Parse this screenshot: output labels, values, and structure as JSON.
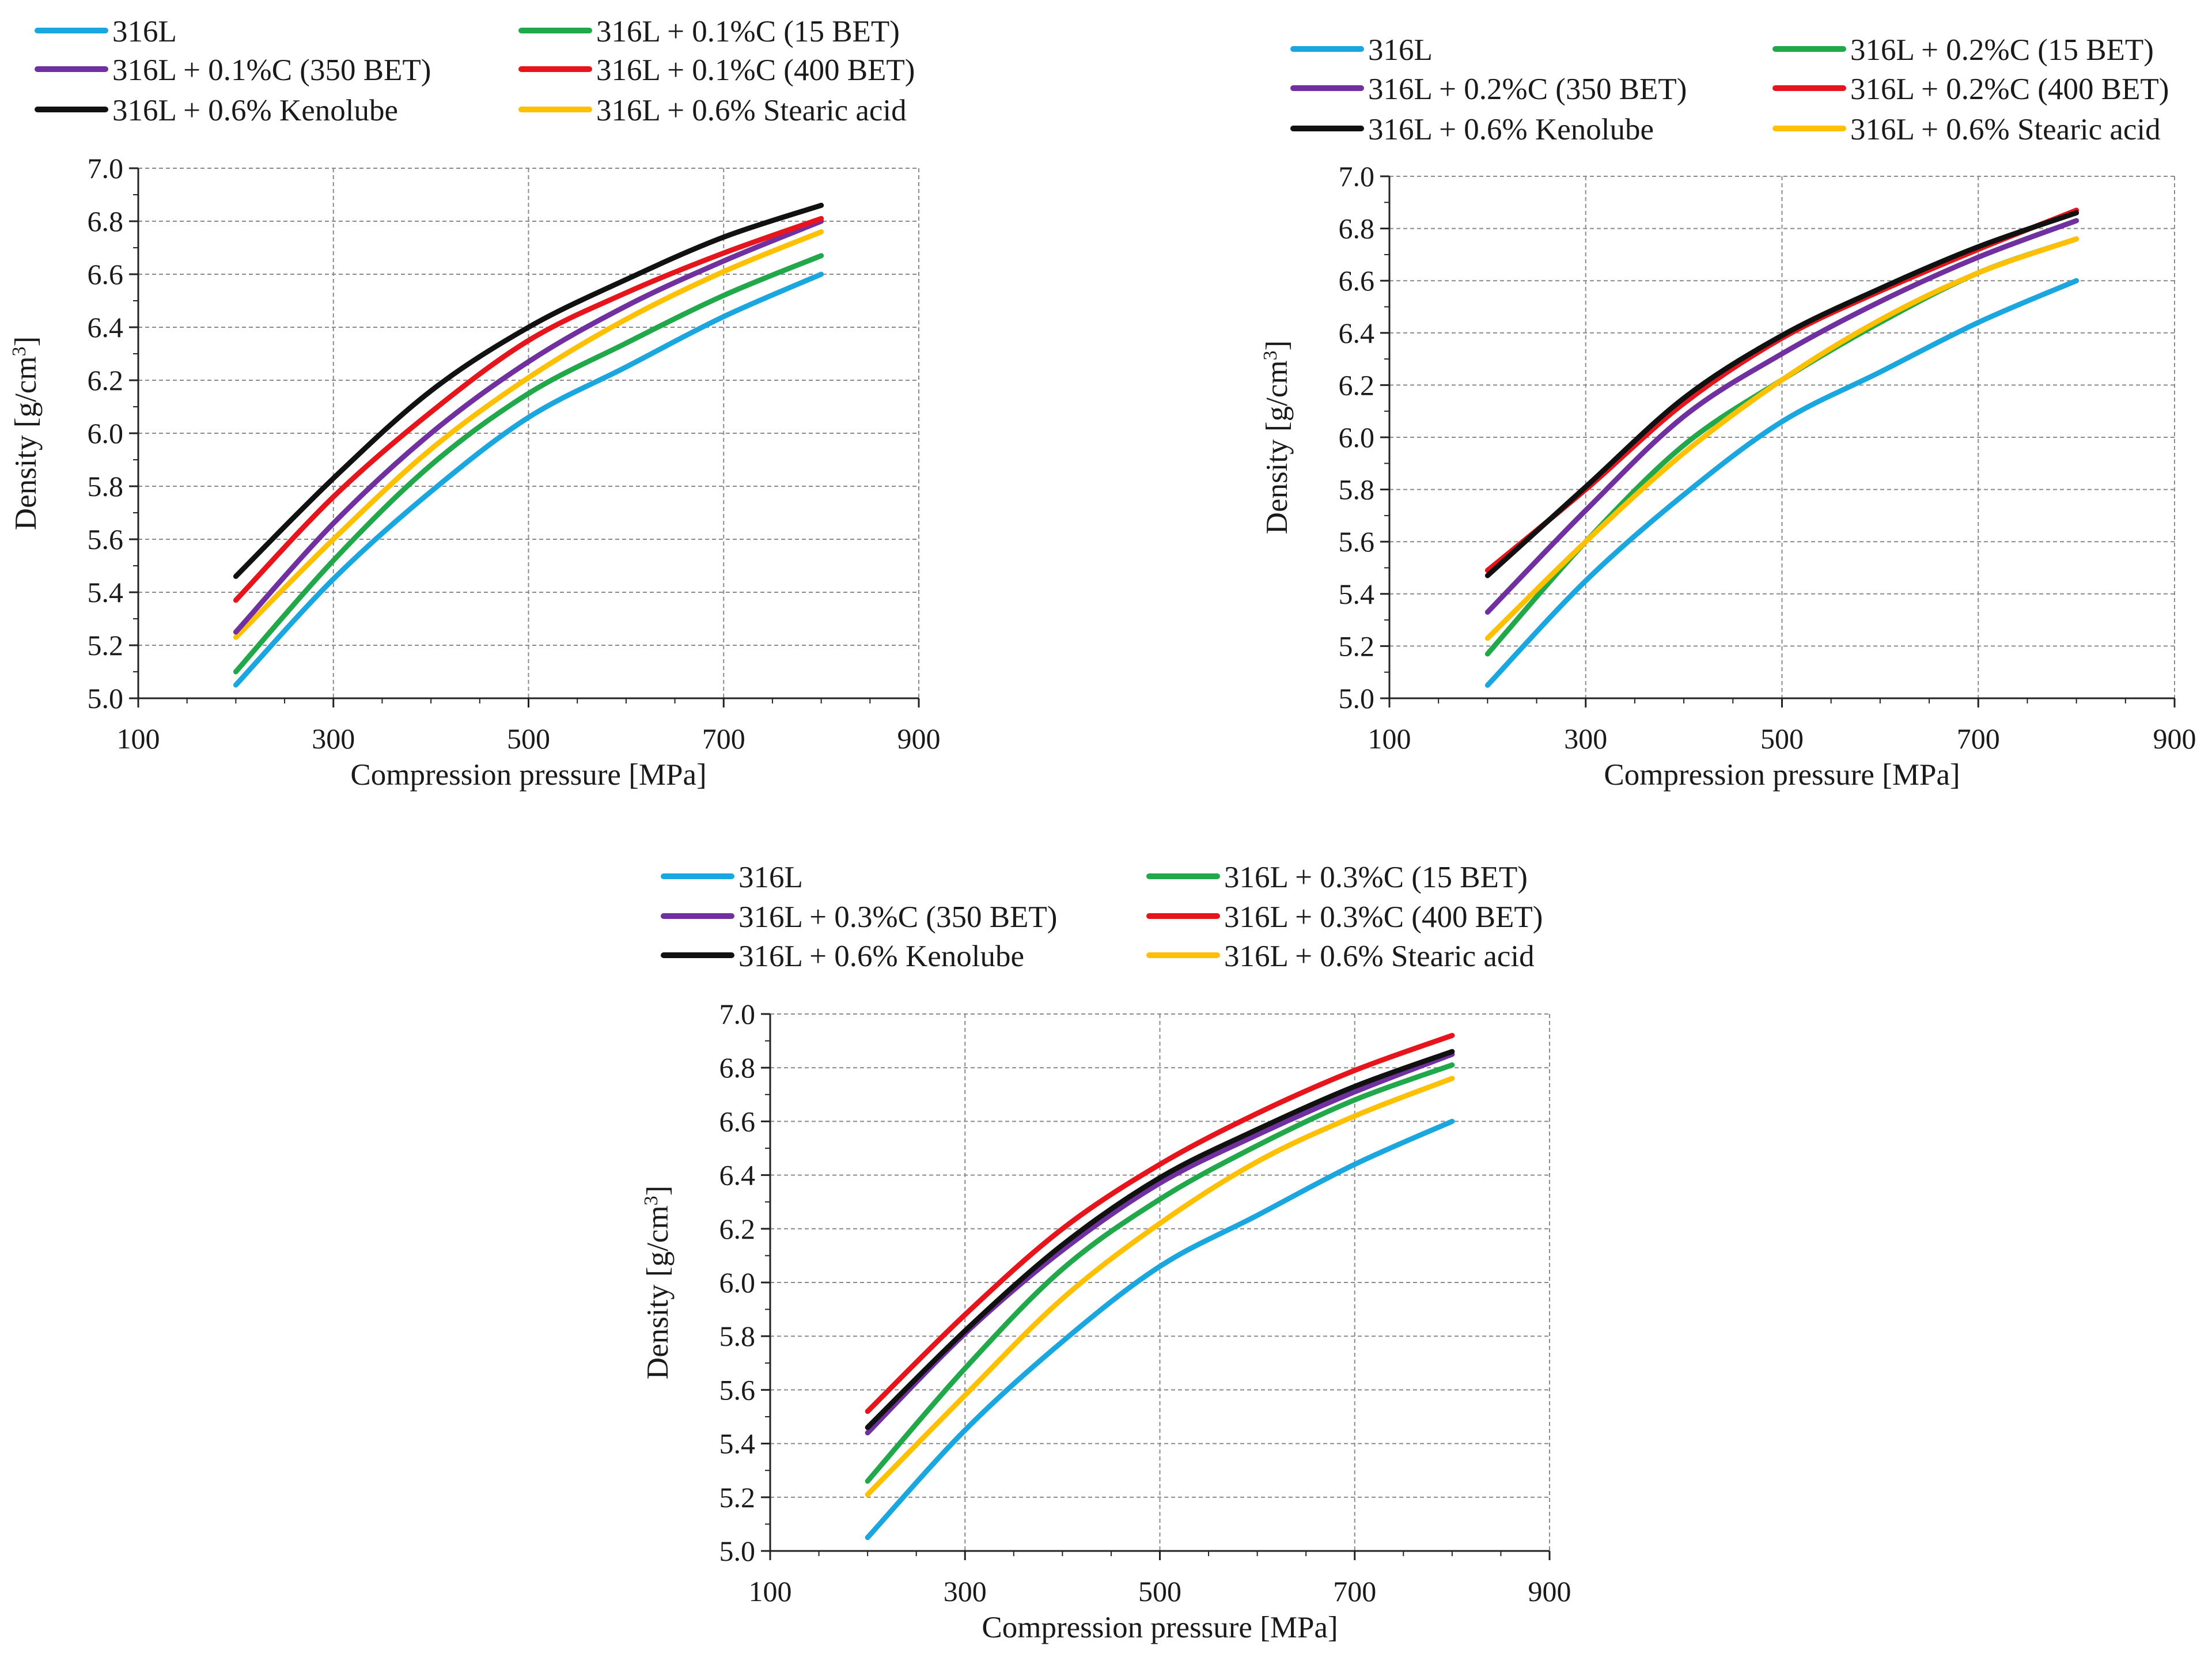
{
  "chart_data": [
    {
      "type": "line",
      "title": "",
      "xlabel": "Compression pressure [MPa]",
      "ylabel_main": "Density [g/cm",
      "ylabel_sup": "3",
      "ylabel_end": "]",
      "xlim": [
        100,
        900
      ],
      "ylim": [
        5.0,
        7.0
      ],
      "xticks": [
        100,
        300,
        500,
        700,
        900
      ],
      "xtick_labels": [
        "100",
        "300",
        "500",
        "700",
        "900"
      ],
      "yticks": [
        5.0,
        5.2,
        5.4,
        5.6,
        5.8,
        6.0,
        6.2,
        6.4,
        6.6,
        6.8,
        7.0
      ],
      "ytick_labels": [
        "5.0",
        "5.2",
        "5.4",
        "5.6",
        "5.8",
        "6.0",
        "6.2",
        "6.4",
        "6.6",
        "6.8",
        "7.0"
      ],
      "grid": true,
      "x": [
        200,
        300,
        400,
        500,
        600,
        700,
        800
      ],
      "series": [
        {
          "name": "316L",
          "color": "#1aa7e0",
          "values": [
            5.05,
            5.45,
            5.78,
            6.06,
            6.25,
            6.44,
            6.6
          ]
        },
        {
          "name": "316L + 0.1%C (15 BET)",
          "color": "#21a84a",
          "values": [
            5.1,
            5.52,
            5.88,
            6.15,
            6.34,
            6.52,
            6.67
          ]
        },
        {
          "name": "316L + 0.1%C (350 BET)",
          "color": "#7030a0",
          "values": [
            5.25,
            5.66,
            6.0,
            6.27,
            6.48,
            6.65,
            6.8
          ]
        },
        {
          "name": "316L + 0.1%C (400 BET)",
          "color": "#e8141b",
          "values": [
            5.37,
            5.76,
            6.08,
            6.35,
            6.53,
            6.68,
            6.81
          ]
        },
        {
          "name": "316L + 0.6% Kenolube",
          "color": "#111111",
          "values": [
            5.46,
            5.83,
            6.16,
            6.4,
            6.58,
            6.74,
            6.86
          ]
        },
        {
          "name": "316L + 0.6% Stearic acid",
          "color": "#ffc000",
          "values": [
            5.23,
            5.6,
            5.94,
            6.21,
            6.43,
            6.61,
            6.76
          ]
        }
      ]
    },
    {
      "type": "line",
      "title": "",
      "xlabel": "Compression pressure [MPa]",
      "ylabel_main": "Density [g/cm",
      "ylabel_sup": "3",
      "ylabel_end": "]",
      "xlim": [
        100,
        900
      ],
      "ylim": [
        5.0,
        7.0
      ],
      "xticks": [
        100,
        300,
        500,
        700,
        900
      ],
      "xtick_labels": [
        "100",
        "300",
        "500",
        "700",
        "900"
      ],
      "yticks": [
        5.0,
        5.2,
        5.4,
        5.6,
        5.8,
        6.0,
        6.2,
        6.4,
        6.6,
        6.8,
        7.0
      ],
      "ytick_labels": [
        "5.0",
        "5.2",
        "5.4",
        "5.6",
        "5.8",
        "6.0",
        "6.2",
        "6.4",
        "6.6",
        "6.8",
        "7.0"
      ],
      "grid": true,
      "x": [
        200,
        300,
        400,
        500,
        600,
        700,
        800
      ],
      "series": [
        {
          "name": "316L",
          "color": "#1aa7e0",
          "values": [
            5.05,
            5.45,
            5.78,
            6.06,
            6.25,
            6.44,
            6.6
          ]
        },
        {
          "name": "316L + 0.2%C (15 BET)",
          "color": "#21a84a",
          "values": [
            5.17,
            5.6,
            5.97,
            6.22,
            6.44,
            6.63,
            6.76
          ]
        },
        {
          "name": "316L + 0.2%C (350 BET)",
          "color": "#7030a0",
          "values": [
            5.33,
            5.72,
            6.08,
            6.32,
            6.52,
            6.69,
            6.83
          ]
        },
        {
          "name": "316L + 0.2%C (400 BET)",
          "color": "#e8141b",
          "values": [
            5.49,
            5.8,
            6.13,
            6.38,
            6.56,
            6.72,
            6.87
          ]
        },
        {
          "name": "316L + 0.6% Kenolube",
          "color": "#111111",
          "values": [
            5.47,
            5.81,
            6.15,
            6.39,
            6.57,
            6.73,
            6.86
          ]
        },
        {
          "name": "316L + 0.6% Stearic acid",
          "color": "#ffc000",
          "values": [
            5.23,
            5.6,
            5.94,
            6.22,
            6.45,
            6.63,
            6.76
          ]
        }
      ]
    },
    {
      "type": "line",
      "title": "",
      "xlabel": "Compression pressure [MPa]",
      "ylabel_main": "Density [g/cm",
      "ylabel_sup": "3",
      "ylabel_end": "]",
      "xlim": [
        100,
        900
      ],
      "ylim": [
        5.0,
        7.0
      ],
      "xticks": [
        100,
        300,
        500,
        700,
        900
      ],
      "xtick_labels": [
        "100",
        "300",
        "500",
        "700",
        "900"
      ],
      "yticks": [
        5.0,
        5.2,
        5.4,
        5.6,
        5.8,
        6.0,
        6.2,
        6.4,
        6.6,
        6.8,
        7.0
      ],
      "ytick_labels": [
        "5.0",
        "5.2",
        "5.4",
        "5.6",
        "5.8",
        "6.0",
        "6.2",
        "6.4",
        "6.6",
        "6.8",
        "7.0"
      ],
      "grid": true,
      "x": [
        200,
        300,
        400,
        500,
        600,
        700,
        800
      ],
      "series": [
        {
          "name": "316L",
          "color": "#1aa7e0",
          "values": [
            5.05,
            5.45,
            5.78,
            6.06,
            6.25,
            6.44,
            6.6
          ]
        },
        {
          "name": "316L + 0.3%C (15 BET)",
          "color": "#21a84a",
          "values": [
            5.26,
            5.68,
            6.05,
            6.31,
            6.51,
            6.68,
            6.81
          ]
        },
        {
          "name": "316L + 0.3%C (350 BET)",
          "color": "#7030a0",
          "values": [
            5.44,
            5.81,
            6.12,
            6.37,
            6.55,
            6.71,
            6.85
          ]
        },
        {
          "name": "316L + 0.3%C (400 BET)",
          "color": "#e8141b",
          "values": [
            5.52,
            5.88,
            6.2,
            6.44,
            6.63,
            6.79,
            6.92
          ]
        },
        {
          "name": "316L + 0.6% Kenolube",
          "color": "#111111",
          "values": [
            5.46,
            5.82,
            6.14,
            6.39,
            6.57,
            6.73,
            6.86
          ]
        },
        {
          "name": "316L + 0.6% Stearic acid",
          "color": "#ffc000",
          "values": [
            5.21,
            5.58,
            5.94,
            6.22,
            6.45,
            6.62,
            6.76
          ]
        }
      ]
    }
  ]
}
